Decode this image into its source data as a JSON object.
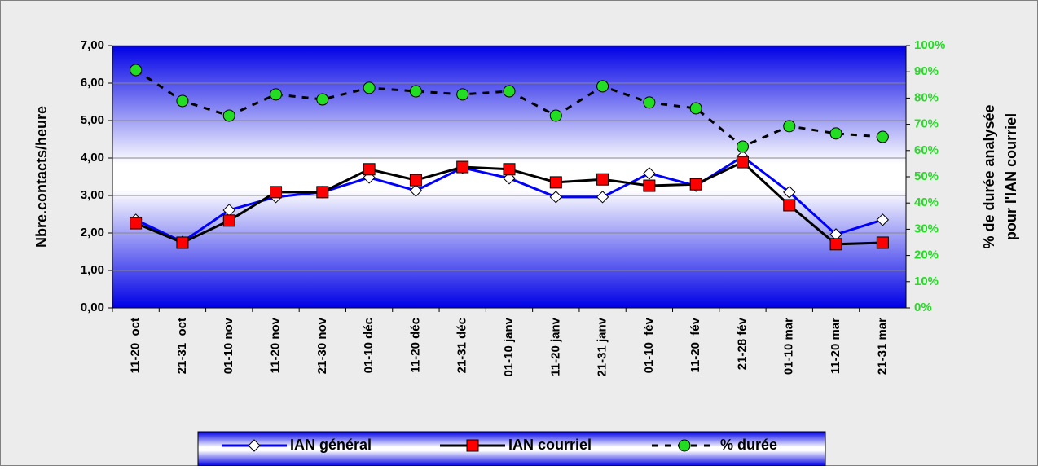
{
  "chart_data": {
    "type": "line",
    "ylabel": "Nbre.contacts/heure",
    "y2label": [
      "% de durée analysée",
      "pour l'IAN courriel"
    ],
    "categories": [
      "11-20  oct",
      "21-31  oct",
      "01-10 nov",
      "11-20 nov",
      "21-30 nov",
      "01-10 déc",
      "11-20 déc",
      "21-31 déc",
      "01-10 janv",
      "11-20 janv",
      "21-31 janv",
      "01-10  fév",
      "11-20  fév",
      "21-28 fév",
      "01-10 mar",
      "11-20 mar",
      "21-31 mar"
    ],
    "series": [
      {
        "name": "IAN général",
        "color": "#0000ff",
        "marker": "diamond",
        "values": [
          2.35,
          1.76,
          2.61,
          2.96,
          3.09,
          3.48,
          3.13,
          3.74,
          3.46,
          2.96,
          2.96,
          3.59,
          3.26,
          4.04,
          3.09,
          1.96,
          2.35
        ]
      },
      {
        "name": "IAN courriel",
        "color": "#000000",
        "marker": "square",
        "values": [
          2.26,
          1.74,
          2.33,
          3.09,
          3.09,
          3.7,
          3.41,
          3.76,
          3.7,
          3.35,
          3.43,
          3.26,
          3.3,
          3.89,
          2.74,
          1.7,
          1.74
        ]
      },
      {
        "name": "% durée",
        "color": "#000000",
        "marker": "circle",
        "dashed": true,
        "axis": "y2",
        "values": [
          90.7,
          78.9,
          73.3,
          81.4,
          79.5,
          83.9,
          82.6,
          81.4,
          82.6,
          73.3,
          84.5,
          78.3,
          76.1,
          61.5,
          69.3,
          66.5,
          65.2
        ]
      }
    ],
    "ylim": [
      0,
      7
    ],
    "yticks": [
      {
        "value": 0,
        "label": "0,00"
      },
      {
        "value": 1,
        "label": "1,00"
      },
      {
        "value": 2,
        "label": "2,00"
      },
      {
        "value": 3,
        "label": "3,00"
      },
      {
        "value": 4,
        "label": "4,00"
      },
      {
        "value": 5,
        "label": "5,00"
      },
      {
        "value": 6,
        "label": "6,00"
      },
      {
        "value": 7,
        "label": "7,00"
      }
    ],
    "y2lim": [
      0,
      100
    ],
    "y2ticks": [
      {
        "value": 0,
        "label": "0%"
      },
      {
        "value": 10,
        "label": "10%"
      },
      {
        "value": 20,
        "label": "20%"
      },
      {
        "value": 30,
        "label": "30%"
      },
      {
        "value": 40,
        "label": "40%"
      },
      {
        "value": 50,
        "label": "50%"
      },
      {
        "value": 60,
        "label": "60%"
      },
      {
        "value": 70,
        "label": "70%"
      },
      {
        "value": 80,
        "label": "80%"
      },
      {
        "value": 90,
        "label": "90%"
      },
      {
        "value": 100,
        "label": "100%"
      }
    ],
    "grid": true,
    "legend": "bottom"
  }
}
